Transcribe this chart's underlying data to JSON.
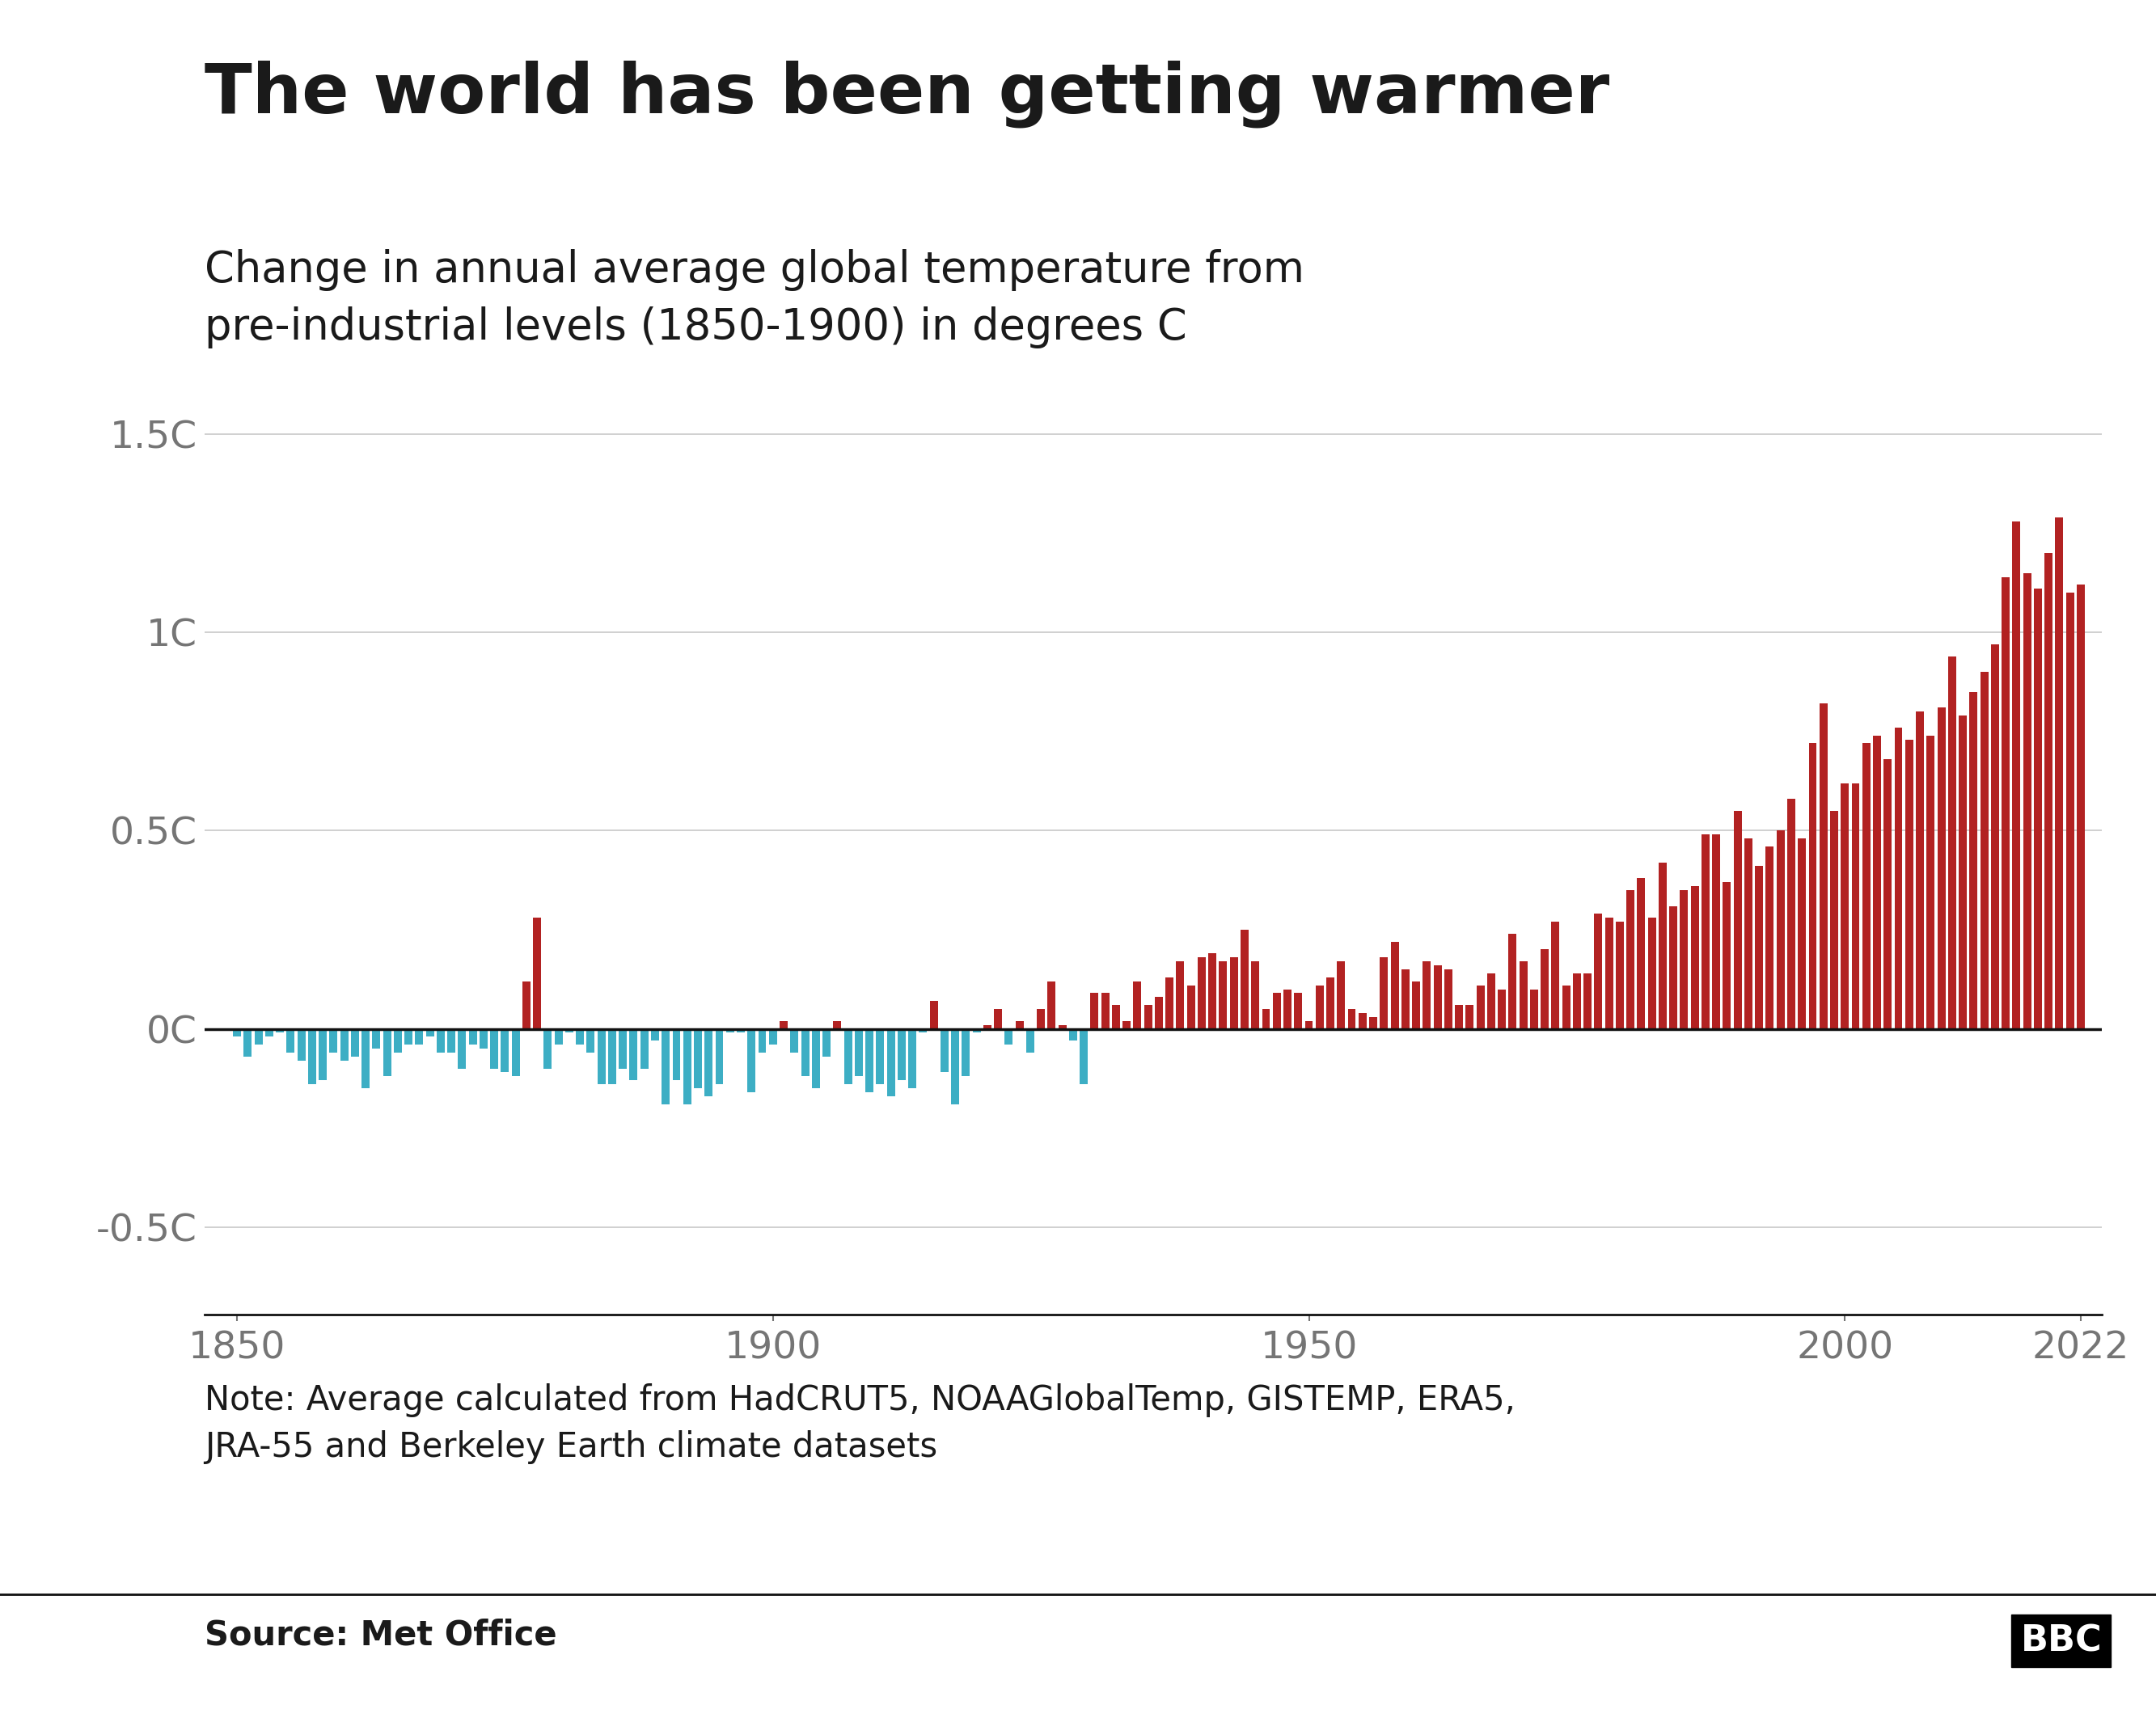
{
  "title": "The world has been getting warmer",
  "subtitle": "Change in annual average global temperature from\npre-industrial levels (1850-1900) in degrees C",
  "note": "Note: Average calculated from HadCRUT5, NOAAGlobalTemp, GISTEMP, ERA5,\nJRA-55 and Berkeley Earth climate datasets",
  "source": "Source: Met Office",
  "years": [
    1850,
    1851,
    1852,
    1853,
    1854,
    1855,
    1856,
    1857,
    1858,
    1859,
    1860,
    1861,
    1862,
    1863,
    1864,
    1865,
    1866,
    1867,
    1868,
    1869,
    1870,
    1871,
    1872,
    1873,
    1874,
    1875,
    1876,
    1877,
    1878,
    1879,
    1880,
    1881,
    1882,
    1883,
    1884,
    1885,
    1886,
    1887,
    1888,
    1889,
    1890,
    1891,
    1892,
    1893,
    1894,
    1895,
    1896,
    1897,
    1898,
    1899,
    1900,
    1901,
    1902,
    1903,
    1904,
    1905,
    1906,
    1907,
    1908,
    1909,
    1910,
    1911,
    1912,
    1913,
    1914,
    1915,
    1916,
    1917,
    1918,
    1919,
    1920,
    1921,
    1922,
    1923,
    1924,
    1925,
    1926,
    1927,
    1928,
    1929,
    1930,
    1931,
    1932,
    1933,
    1934,
    1935,
    1936,
    1937,
    1938,
    1939,
    1940,
    1941,
    1942,
    1943,
    1944,
    1945,
    1946,
    1947,
    1948,
    1949,
    1950,
    1951,
    1952,
    1953,
    1954,
    1955,
    1956,
    1957,
    1958,
    1959,
    1960,
    1961,
    1962,
    1963,
    1964,
    1965,
    1966,
    1967,
    1968,
    1969,
    1970,
    1971,
    1972,
    1973,
    1974,
    1975,
    1976,
    1977,
    1978,
    1979,
    1980,
    1981,
    1982,
    1983,
    1984,
    1985,
    1986,
    1987,
    1988,
    1989,
    1990,
    1991,
    1992,
    1993,
    1994,
    1995,
    1996,
    1997,
    1998,
    1999,
    2000,
    2001,
    2002,
    2003,
    2004,
    2005,
    2006,
    2007,
    2008,
    2009,
    2010,
    2011,
    2012,
    2013,
    2014,
    2015,
    2016,
    2017,
    2018,
    2019,
    2020,
    2021,
    2022
  ],
  "values": [
    -0.02,
    -0.07,
    -0.04,
    -0.02,
    -0.01,
    -0.06,
    -0.08,
    -0.14,
    -0.13,
    -0.06,
    -0.08,
    -0.07,
    -0.15,
    -0.05,
    -0.12,
    -0.06,
    -0.04,
    -0.04,
    -0.02,
    -0.06,
    -0.06,
    -0.1,
    -0.04,
    -0.05,
    -0.1,
    -0.11,
    -0.12,
    0.12,
    0.28,
    -0.1,
    -0.04,
    -0.01,
    -0.04,
    -0.06,
    -0.14,
    -0.14,
    -0.1,
    -0.13,
    -0.1,
    -0.03,
    -0.19,
    -0.13,
    -0.19,
    -0.15,
    -0.17,
    -0.14,
    -0.01,
    -0.01,
    -0.16,
    -0.06,
    -0.04,
    0.02,
    -0.06,
    -0.12,
    -0.15,
    -0.07,
    0.02,
    -0.14,
    -0.12,
    -0.16,
    -0.14,
    -0.17,
    -0.13,
    -0.15,
    -0.01,
    0.07,
    -0.11,
    -0.19,
    -0.12,
    -0.01,
    0.01,
    0.05,
    -0.04,
    0.02,
    -0.06,
    0.05,
    0.12,
    0.01,
    -0.03,
    -0.14,
    0.09,
    0.09,
    0.06,
    0.02,
    0.12,
    0.06,
    0.08,
    0.13,
    0.17,
    0.11,
    0.18,
    0.19,
    0.17,
    0.18,
    0.25,
    0.17,
    0.05,
    0.09,
    0.1,
    0.09,
    0.02,
    0.11,
    0.13,
    0.17,
    0.05,
    0.04,
    0.03,
    0.18,
    0.22,
    0.15,
    0.12,
    0.17,
    0.16,
    0.15,
    0.06,
    0.06,
    0.11,
    0.14,
    0.1,
    0.24,
    0.17,
    0.1,
    0.2,
    0.27,
    0.11,
    0.14,
    0.14,
    0.29,
    0.28,
    0.27,
    0.35,
    0.38,
    0.28,
    0.42,
    0.31,
    0.35,
    0.36,
    0.49,
    0.49,
    0.37,
    0.55,
    0.48,
    0.41,
    0.46,
    0.5,
    0.58,
    0.48,
    0.72,
    0.82,
    0.55,
    0.62,
    0.62,
    0.72,
    0.74,
    0.68,
    0.76,
    0.73,
    0.8,
    0.74,
    0.81,
    0.94,
    0.79,
    0.85,
    0.9,
    0.97,
    1.14,
    1.28,
    1.15,
    1.11,
    1.2,
    1.29,
    1.1,
    1.12
  ],
  "color_positive": "#b22222",
  "color_negative": "#3daec4",
  "background_color": "#ffffff",
  "text_color": "#1a1a1a",
  "axis_color": "#757575",
  "grid_color": "#c8c8c8",
  "zero_line_color": "#111111",
  "ylim": [
    -0.72,
    1.62
  ],
  "yticks": [
    -0.5,
    0.0,
    0.5,
    1.0,
    1.5
  ],
  "ytick_labels": [
    "-0.5C",
    "0C",
    "0.5C",
    "1C",
    "1.5C"
  ],
  "xticks": [
    1850,
    1900,
    1950,
    2000,
    2022
  ],
  "title_fontsize": 62,
  "subtitle_fontsize": 38,
  "tick_fontsize": 34,
  "note_fontsize": 30,
  "source_fontsize": 30
}
